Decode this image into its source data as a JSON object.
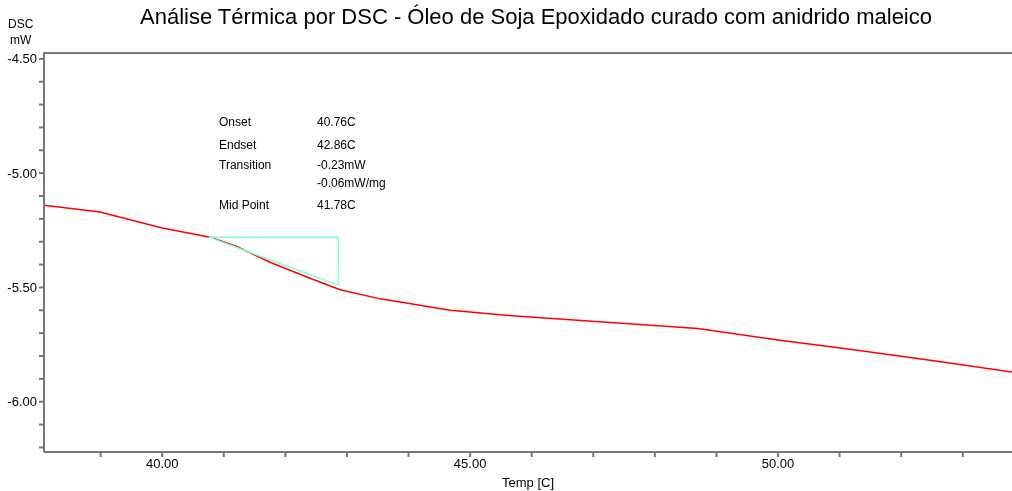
{
  "chart_data": {
    "type": "line",
    "title": "Análise Térmica por DSC - Óleo de Soja Epoxidado curado com anidrido maleico",
    "xlabel": "Temp  [C]",
    "ylabel": "DSC mW",
    "xlim": [
      38.08,
      53.8
    ],
    "ylim": [
      -6.22,
      -4.47
    ],
    "xticks": [
      {
        "value": 39,
        "label": null
      },
      {
        "value": 40,
        "label": "40.00"
      },
      {
        "value": 41,
        "label": null
      },
      {
        "value": 42,
        "label": null
      },
      {
        "value": 43,
        "label": null
      },
      {
        "value": 44,
        "label": null
      },
      {
        "value": 45,
        "label": "45.00"
      },
      {
        "value": 46,
        "label": null
      },
      {
        "value": 47,
        "label": null
      },
      {
        "value": 48,
        "label": null
      },
      {
        "value": 49,
        "label": null
      },
      {
        "value": 50,
        "label": "50.00"
      },
      {
        "value": 51,
        "label": null
      },
      {
        "value": 52,
        "label": null
      },
      {
        "value": 53,
        "label": null
      }
    ],
    "yticks": [
      {
        "value": -4.5,
        "label": "-4.50"
      },
      {
        "value": -4.6,
        "label": null
      },
      {
        "value": -4.7,
        "label": null
      },
      {
        "value": -4.8,
        "label": null
      },
      {
        "value": -4.9,
        "label": null
      },
      {
        "value": -5.0,
        "label": "-5.00"
      },
      {
        "value": -5.1,
        "label": null
      },
      {
        "value": -5.2,
        "label": null
      },
      {
        "value": -5.3,
        "label": null
      },
      {
        "value": -5.4,
        "label": null
      },
      {
        "value": -5.5,
        "label": "-5.50"
      },
      {
        "value": -5.6,
        "label": null
      },
      {
        "value": -5.7,
        "label": null
      },
      {
        "value": -5.8,
        "label": null
      },
      {
        "value": -5.9,
        "label": null
      },
      {
        "value": -6.0,
        "label": "-6.00"
      },
      {
        "value": -6.1,
        "label": null
      },
      {
        "value": -6.2,
        "label": null
      }
    ],
    "grid": false,
    "legend": false,
    "marker": "none",
    "line_style": "solid",
    "series": [
      {
        "color": "#ff0000",
        "x": [
          38.08,
          38.99,
          40.0,
          40.78,
          41.2,
          41.75,
          42.4,
          42.89,
          43.54,
          44.68,
          45.49,
          47.1,
          48.7,
          50.0,
          51.17,
          52.5,
          53.8
        ],
        "values": [
          -5.14,
          -5.17,
          -5.24,
          -5.28,
          -5.32,
          -5.39,
          -5.46,
          -5.51,
          -5.55,
          -5.6,
          -5.62,
          -5.65,
          -5.68,
          -5.73,
          -5.77,
          -5.82,
          -5.87
        ]
      },
      {
        "color": "#7fffd4",
        "x": [
          40.76,
          42.86,
          42.86
        ],
        "values": [
          -5.28,
          -5.28,
          -5.49
        ]
      },
      {
        "color": "#7fffd4",
        "x": [
          40.76,
          42.86
        ],
        "values": [
          -5.28,
          -5.49
        ]
      }
    ],
    "annotations": [
      "Onset",
      "40.76C",
      "Endset",
      "42.86C",
      "Transition",
      "-0.23mW",
      "-0.06mW/mg",
      "Mid Point",
      "41.78C"
    ]
  }
}
